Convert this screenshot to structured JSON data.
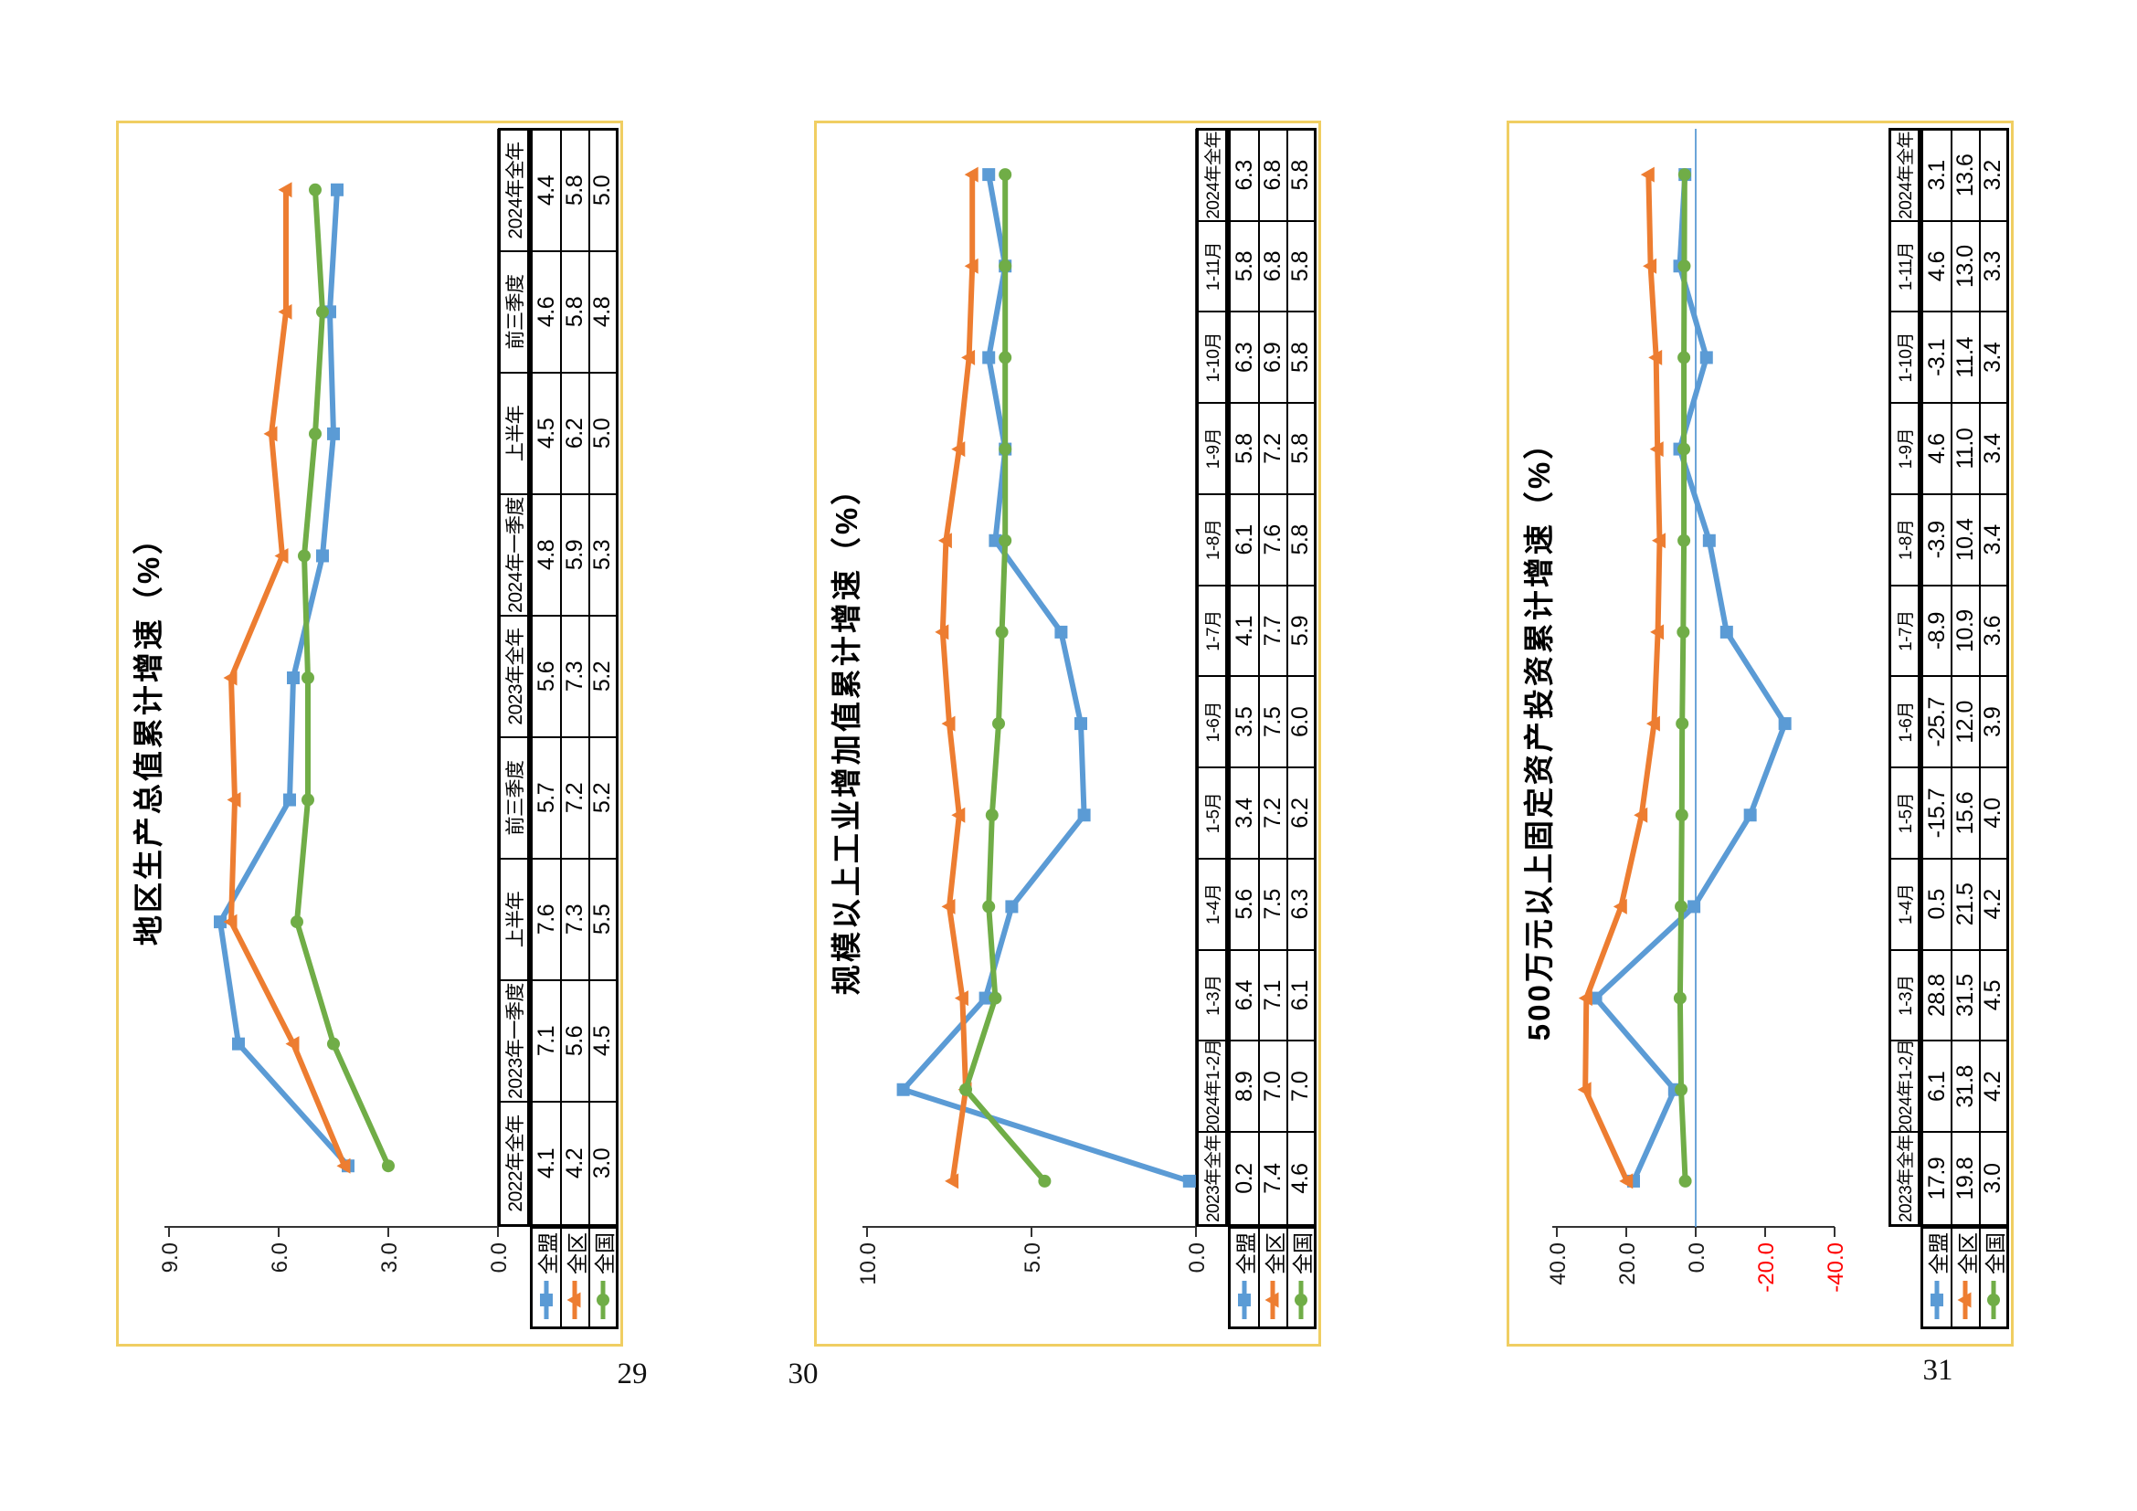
{
  "page_numbers": [
    "29",
    "30",
    "31"
  ],
  "colors": {
    "panel_border": "#F0CE62",
    "axis": "#333333",
    "negative_tick": "#FF0000",
    "series_blue": "#5B9BD5",
    "series_orange": "#ED7D31",
    "series_green": "#70AD47"
  },
  "chart_data": [
    {
      "type": "line",
      "title": "地区生产总值累计增速（%）",
      "categories": [
        "2022年全年",
        "2023年一季度",
        "上半年",
        "前三季度",
        "2023年全年",
        "2024年一季度",
        "上半年",
        "前三季度",
        "2024年全年"
      ],
      "series": [
        {
          "name": "全盟",
          "marker": "square",
          "color": "#5B9BD5",
          "values": [
            4.1,
            7.1,
            7.6,
            5.7,
            5.6,
            4.8,
            4.5,
            4.6,
            4.4
          ]
        },
        {
          "name": "全区",
          "marker": "triangle",
          "color": "#ED7D31",
          "values": [
            4.2,
            5.6,
            7.3,
            7.2,
            7.3,
            5.9,
            6.2,
            5.8,
            5.8
          ]
        },
        {
          "name": "全国",
          "marker": "circle",
          "color": "#70AD47",
          "values": [
            3.0,
            4.5,
            5.5,
            5.2,
            5.2,
            5.3,
            5.0,
            4.8,
            5.0
          ]
        }
      ],
      "ylim": [
        0,
        9
      ],
      "yticks": [
        0,
        3,
        6,
        9
      ],
      "ytick_labels": [
        "0.0",
        "3.0",
        "6.0",
        "9.0"
      ],
      "zero_line_color": "#333333",
      "grid": false,
      "legend_position": "table-left",
      "page_number": "29"
    },
    {
      "type": "line",
      "title": "规模以上工业增加值累计增速（%）",
      "categories": [
        "2023年全年",
        "2024年1-2月",
        "1-3月",
        "1-4月",
        "1-5月",
        "1-6月",
        "1-7月",
        "1-8月",
        "1-9月",
        "1-10月",
        "1-11月",
        "2024年全年"
      ],
      "series": [
        {
          "name": "全盟",
          "marker": "square",
          "color": "#5B9BD5",
          "values": [
            0.2,
            8.9,
            6.4,
            5.6,
            3.4,
            3.5,
            4.1,
            6.1,
            5.8,
            6.3,
            5.8,
            6.3
          ]
        },
        {
          "name": "全区",
          "marker": "triangle",
          "color": "#ED7D31",
          "values": [
            7.4,
            7.0,
            7.1,
            7.5,
            7.2,
            7.5,
            7.7,
            7.6,
            7.2,
            6.9,
            6.8,
            6.8
          ]
        },
        {
          "name": "全国",
          "marker": "circle",
          "color": "#70AD47",
          "values": [
            4.6,
            7.0,
            6.1,
            6.3,
            6.2,
            6.0,
            5.9,
            5.8,
            5.8,
            5.8,
            5.8,
            5.8
          ]
        }
      ],
      "ylim": [
        0,
        10
      ],
      "yticks": [
        0,
        5,
        10
      ],
      "ytick_labels": [
        "0.0",
        "5.0",
        "10.0"
      ],
      "zero_line_color": "#333333",
      "grid": false,
      "legend_position": "table-left",
      "page_number": "30"
    },
    {
      "type": "line",
      "title": "500万元以上固定资产投资累计增速（%）",
      "categories": [
        "2023年全年",
        "2024年1-2月",
        "1-3月",
        "1-4月",
        "1-5月",
        "1-6月",
        "1-7月",
        "1-8月",
        "1-9月",
        "1-10月",
        "1-11月",
        "2024年全年"
      ],
      "series": [
        {
          "name": "全盟",
          "marker": "square",
          "color": "#5B9BD5",
          "values": [
            17.9,
            6.1,
            28.8,
            0.5,
            -15.7,
            -25.7,
            -8.9,
            -3.9,
            4.6,
            -3.1,
            4.6,
            3.1
          ]
        },
        {
          "name": "全区",
          "marker": "triangle",
          "color": "#ED7D31",
          "values": [
            19.8,
            31.8,
            31.5,
            21.5,
            15.6,
            12.0,
            10.9,
            10.4,
            11.0,
            11.4,
            13.0,
            13.6
          ]
        },
        {
          "name": "全国",
          "marker": "circle",
          "color": "#70AD47",
          "values": [
            3.0,
            4.2,
            4.5,
            4.2,
            4.0,
            3.9,
            3.6,
            3.4,
            3.4,
            3.4,
            3.3,
            3.2
          ]
        }
      ],
      "ylim": [
        -40,
        40
      ],
      "yticks": [
        -40,
        -20,
        0,
        20,
        40
      ],
      "ytick_labels": [
        "-40.0",
        "-20.0",
        "0.0",
        "20.0",
        "40.0"
      ],
      "negative_tick_color": "#FF0000",
      "zero_line_color": "#5B9BD5",
      "grid": false,
      "legend_position": "table-left",
      "page_number": "31"
    }
  ]
}
